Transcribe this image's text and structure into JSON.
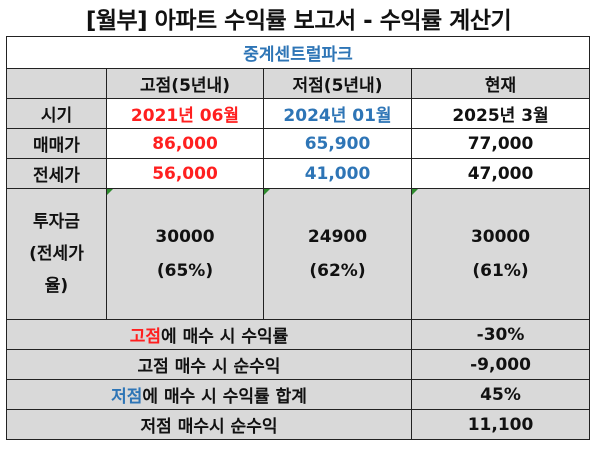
{
  "title": "[월부] 아파트 수익률 보고서 - 수익률 계산기",
  "subtitle": "중계센트럴파크",
  "headers": {
    "col1": "고점(5년내)",
    "col2": "저점(5년내)",
    "col3": "현재"
  },
  "rows": {
    "period": {
      "label": "시기",
      "high": "2021년 06월",
      "low": "2024년 01월",
      "now": "2025년 3월"
    },
    "sale": {
      "label": "매매가",
      "high": "86,000",
      "low": "65,900",
      "now": "77,000"
    },
    "jeonse": {
      "label": "전세가",
      "high": "56,000",
      "low": "41,000",
      "now": "47,000"
    },
    "invest": {
      "label_line1": "투자금",
      "label_line2": "(전세가",
      "label_line3": "율)",
      "high_amount": "30000",
      "high_ratio": "(65%)",
      "low_amount": "24900",
      "low_ratio": "(62%)",
      "now_amount": "30000",
      "now_ratio": "(61%)"
    }
  },
  "summary": {
    "high_return": {
      "label_highlight": "고점",
      "label_rest": "에 매수 시 수익률",
      "value": "-30%"
    },
    "high_net": {
      "label": "고점 매수 시 순수익",
      "value": "-9,000"
    },
    "low_return": {
      "label_highlight": "저점",
      "label_rest": "에 매수 시 수익률 합계",
      "value": "45%"
    },
    "low_net": {
      "label": "저점 매수시 순수익",
      "value": "11,100"
    }
  },
  "colors": {
    "red": "#ff1f1f",
    "blue": "#2e75b6",
    "gray": "#d9d9d9",
    "comment_marker": "#2e8b2e"
  }
}
